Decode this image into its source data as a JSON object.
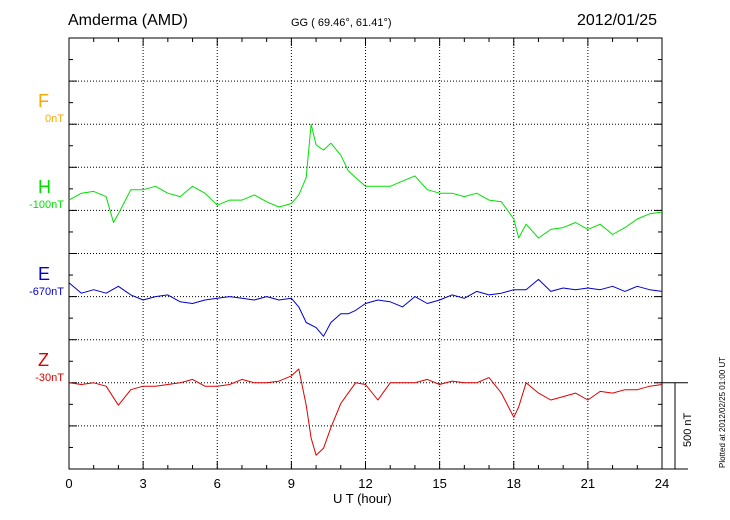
{
  "header": {
    "station": "Amderma (AMD)",
    "coords": "GG ( 69.46°,  61.41°)",
    "date": "2012/01/25"
  },
  "footer": {
    "xlabel": "U T (hour)",
    "plotted": "Plotted at 2012/02/25 01:00 UT",
    "scale_label": "500 nT"
  },
  "colors": {
    "F": "#ffa500",
    "H": "#00e000",
    "E": "#0000cc",
    "Z": "#dd0000",
    "grid": "#000000"
  },
  "chart_data": {
    "type": "line",
    "title": "Amderma (AMD)",
    "xlabel": "U T (hour)",
    "xlim": [
      0,
      24
    ],
    "x_ticks": [
      "0",
      "3",
      "6",
      "9",
      "12",
      "15",
      "18",
      "21",
      "24"
    ],
    "scale_nT": 500,
    "grid": true,
    "channels": [
      {
        "name": "F",
        "offset_label": "0nT",
        "baseline_nT": 1000
      },
      {
        "name": "H",
        "offset_label": "-100nT",
        "baseline_nT": 500
      },
      {
        "name": "E",
        "offset_label": "-670nT",
        "baseline_nT": 0
      },
      {
        "name": "Z",
        "offset_label": "-30nT",
        "baseline_nT": -500
      }
    ],
    "ylim_nT": [
      -1000,
      1500
    ],
    "series": [
      {
        "name": "H",
        "x": [
          0,
          0.5,
          1,
          1.5,
          1.8,
          2,
          2.5,
          3,
          3.5,
          4,
          4.5,
          5,
          5.5,
          6,
          6.5,
          7,
          7.5,
          8,
          8.5,
          9,
          9.3,
          9.6,
          9.8,
          10,
          10.3,
          10.6,
          11,
          11.3,
          11.6,
          12,
          12.5,
          13,
          13.5,
          14,
          14.5,
          15,
          15.5,
          16,
          16.5,
          17,
          17.5,
          18,
          18.2,
          18.5,
          19,
          19.5,
          20,
          20.5,
          21,
          21.5,
          22,
          22.5,
          23,
          23.5,
          24
        ],
        "y": [
          560,
          600,
          610,
          580,
          430,
          480,
          620,
          620,
          640,
          600,
          580,
          640,
          600,
          530,
          560,
          560,
          590,
          550,
          520,
          540,
          590,
          690,
          1000,
          880,
          850,
          890,
          820,
          730,
          690,
          640,
          640,
          640,
          670,
          700,
          620,
          600,
          600,
          580,
          600,
          560,
          550,
          450,
          340,
          420,
          340,
          390,
          400,
          430,
          390,
          420,
          360,
          400,
          450,
          480,
          490
        ]
      },
      {
        "name": "E",
        "x": [
          0,
          0.5,
          1,
          1.5,
          2,
          2.5,
          3,
          3.5,
          4,
          4.5,
          5,
          5.5,
          6,
          6.5,
          7,
          7.5,
          8,
          8.5,
          9,
          9.3,
          9.6,
          10,
          10.3,
          10.6,
          11,
          11.3,
          11.6,
          12,
          12.5,
          13,
          13.5,
          14,
          14.5,
          15,
          15.5,
          16,
          16.5,
          17,
          17.5,
          18,
          18.5,
          19,
          19.5,
          20,
          20.5,
          21,
          21.5,
          22,
          22.5,
          23,
          23.5,
          24
        ],
        "y": [
          80,
          20,
          40,
          20,
          60,
          10,
          -20,
          0,
          10,
          -30,
          -40,
          -20,
          -10,
          0,
          -10,
          -20,
          0,
          -20,
          -10,
          -60,
          -150,
          -180,
          -230,
          -150,
          -100,
          -100,
          -80,
          -40,
          -20,
          -30,
          -60,
          0,
          -40,
          -20,
          10,
          -10,
          30,
          10,
          20,
          40,
          40,
          100,
          30,
          50,
          40,
          50,
          40,
          60,
          30,
          60,
          40,
          30
        ]
      },
      {
        "name": "Z",
        "x": [
          0,
          0.5,
          1,
          1.5,
          2,
          2.5,
          3,
          3.5,
          4,
          4.5,
          5,
          5.5,
          6,
          6.5,
          7,
          7.5,
          8,
          8.5,
          9,
          9.3,
          9.6,
          9.8,
          10,
          10.3,
          10.6,
          11,
          11.3,
          11.6,
          12,
          12.5,
          13,
          13.5,
          14,
          14.5,
          15,
          15.5,
          16,
          16.5,
          17,
          17.5,
          18,
          18.2,
          18.5,
          19,
          19.5,
          20,
          20.5,
          21,
          21.5,
          22,
          22.5,
          23,
          23.5,
          24
        ],
        "y": [
          -500,
          -510,
          -500,
          -520,
          -630,
          -540,
          -520,
          -520,
          -510,
          -500,
          -480,
          -520,
          -520,
          -510,
          -480,
          -500,
          -500,
          -490,
          -460,
          -420,
          -630,
          -820,
          -920,
          -880,
          -760,
          -620,
          -560,
          -500,
          -510,
          -600,
          -500,
          -500,
          -500,
          -480,
          -510,
          -490,
          -500,
          -500,
          -470,
          -560,
          -700,
          -640,
          -500,
          -560,
          -600,
          -580,
          -560,
          -600,
          -550,
          -560,
          -540,
          -540,
          -520,
          -510
        ]
      }
    ]
  }
}
